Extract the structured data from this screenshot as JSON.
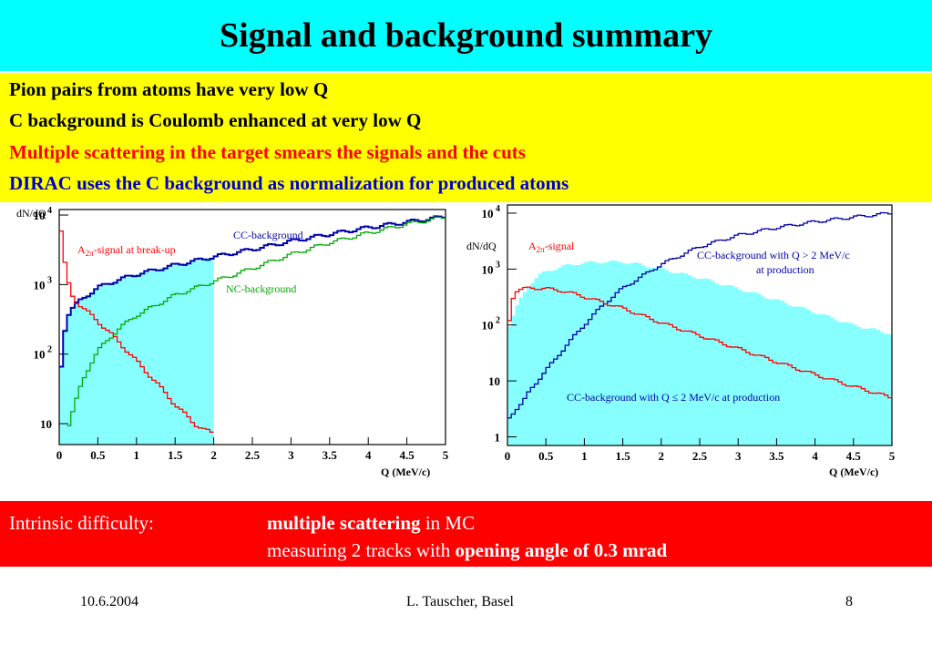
{
  "title": "Signal and background summary",
  "bullets": [
    "Pion pairs from atoms have very low Q",
    "C background is Coulomb enhanced at very low Q",
    "Multiple scattering in the target smears the signals and the cuts",
    "DIRAC uses the C background as normalization for produced atoms"
  ],
  "colors": {
    "title_band": "#00ffff",
    "bullet_band": "#ffff00",
    "bottom_band": "#ff0000",
    "cc_background": "#0000aa",
    "nc_background": "#00aa00",
    "signal": "#ff0000",
    "shaded": "#88ffff"
  },
  "chart_data": [
    {
      "type": "line",
      "ylabel": "dN/dQ",
      "xlabel": "Q (MeV/c)",
      "log_y": true,
      "xlim": [
        0,
        5
      ],
      "ylim": [
        5,
        12000
      ],
      "x_ticks": [
        "0",
        "0.5",
        "1",
        "1.5",
        "2",
        "2.5",
        "3",
        "3.5",
        "4",
        "4.5",
        "5"
      ],
      "y_ticks": [
        {
          "base": "10",
          "exp": ""
        },
        {
          "base": "10",
          "exp": "2"
        },
        {
          "base": "10",
          "exp": "3"
        },
        {
          "base": "10",
          "exp": "4"
        }
      ],
      "shaded_region": {
        "x": [
          0,
          2
        ]
      },
      "annotations": {
        "signal": {
          "main": "A",
          "sub": "2π",
          "rest": "-signal at break-up"
        },
        "cc": "CC-background",
        "nc": "NC-background"
      },
      "series": [
        {
          "key": "cc",
          "x": [
            0,
            0.05,
            0.1,
            0.2,
            0.3,
            0.5,
            0.75,
            1,
            1.5,
            2,
            2.5,
            3,
            3.5,
            4,
            4.5,
            5
          ],
          "y": [
            30,
            150,
            350,
            500,
            620,
            900,
            1150,
            1400,
            1900,
            2500,
            3200,
            4200,
            5300,
            6600,
            7900,
            9500
          ]
        },
        {
          "key": "nc",
          "x": [
            0.1,
            0.2,
            0.3,
            0.4,
            0.5,
            0.75,
            1,
            1.25,
            1.5,
            2,
            2.5,
            3,
            3.5,
            4,
            4.5,
            5
          ],
          "y": [
            8,
            18,
            40,
            70,
            110,
            220,
            360,
            500,
            700,
            1100,
            1700,
            2700,
            4000,
            5500,
            7400,
            9300
          ]
        },
        {
          "key": "signal",
          "x": [
            0,
            0.05,
            0.1,
            0.15,
            0.2,
            0.3,
            0.5,
            0.75,
            1,
            1.25,
            1.5,
            1.75,
            2
          ],
          "y": [
            11000,
            3000,
            1300,
            800,
            600,
            470,
            300,
            160,
            80,
            40,
            19,
            10,
            7
          ]
        }
      ]
    },
    {
      "type": "line",
      "ylabel": "dN/dQ",
      "xlabel": "Q (MeV/c)",
      "log_y": true,
      "xlim": [
        0,
        5
      ],
      "ylim": [
        0.7,
        14000
      ],
      "x_ticks": [
        "0",
        "0.5",
        "1",
        "1.5",
        "2",
        "2.5",
        "3",
        "3.5",
        "4",
        "4.5",
        "5"
      ],
      "y_ticks": [
        {
          "base": "1",
          "exp": ""
        },
        {
          "base": "10",
          "exp": ""
        },
        {
          "base": "10",
          "exp": "2"
        },
        {
          "base": "10",
          "exp": "3"
        },
        {
          "base": "10",
          "exp": "4"
        }
      ],
      "annotations": {
        "signal": {
          "main": "A",
          "sub": "2π",
          "rest": "-signal"
        },
        "cc_high_1": "CC-background with Q > 2 MeV/c",
        "cc_high_2": "at production",
        "cc_low": "CC-background with Q ≤ 2 MeV/c at production"
      },
      "series": [
        {
          "key": "cc_low",
          "x": [
            0,
            0.1,
            0.2,
            0.3,
            0.4,
            0.5,
            0.75,
            1,
            1.25,
            1.5,
            1.75,
            2,
            2.5,
            3,
            3.5,
            4,
            4.5,
            5
          ],
          "y": [
            80,
            180,
            350,
            550,
            750,
            900,
            1150,
            1300,
            1350,
            1350,
            1200,
            1000,
            700,
            450,
            280,
            170,
            100,
            70
          ]
        },
        {
          "key": "cc_high",
          "x": [
            0,
            0.1,
            0.2,
            0.3,
            0.5,
            0.75,
            1,
            1.25,
            1.5,
            2,
            2.5,
            3,
            3.5,
            4,
            4.5,
            5
          ],
          "y": [
            2,
            3,
            4,
            7,
            15,
            40,
            100,
            230,
            450,
            1200,
            2500,
            4000,
            5500,
            7000,
            8500,
            10000
          ]
        },
        {
          "key": "signal",
          "x": [
            0,
            0.05,
            0.1,
            0.2,
            0.3,
            0.5,
            0.75,
            1,
            1.5,
            2,
            2.5,
            3,
            3.5,
            4,
            4.5,
            5
          ],
          "y": [
            60,
            250,
            400,
            440,
            460,
            450,
            400,
            320,
            200,
            110,
            65,
            38,
            22,
            13,
            8,
            5
          ]
        }
      ]
    }
  ],
  "bottom": {
    "label": "Intrinsic difficulty:",
    "line1_bold": "multiple scattering",
    "line1_rest": " in MC",
    "line2_pre": "measuring 2 tracks with ",
    "line2_bold": "opening angle of  0.3 mrad"
  },
  "footer": {
    "date": "10.6.2004",
    "author": "L. Tauscher, Basel",
    "page": "8"
  }
}
